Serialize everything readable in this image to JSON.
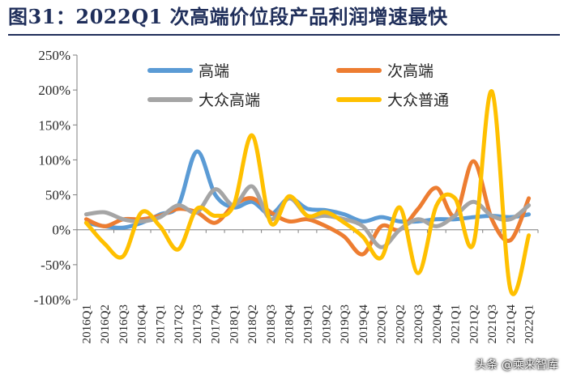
{
  "header": {
    "title": "图31：2022Q1 次高端价位段产品利润增速最快"
  },
  "watermark": {
    "text": "头条 @乘来智库"
  },
  "chart_data": {
    "type": "line",
    "title": "图31：2022Q1 次高端价位段产品利润增速最快",
    "xlabel": "",
    "ylabel": "",
    "ylim": [
      -100,
      250
    ],
    "y_ticks": [
      250,
      200,
      150,
      100,
      50,
      0,
      -50,
      -100
    ],
    "y_tick_labels": [
      "250%",
      "200%",
      "150%",
      "100%",
      "50%",
      "0%",
      "-50%",
      "-100%"
    ],
    "legend_position": "top",
    "categories": [
      "2016Q1",
      "2016Q2",
      "2016Q3",
      "2016Q4",
      "2017Q1",
      "2017Q2",
      "2017Q3",
      "2017Q4",
      "2018Q1",
      "2018Q2",
      "2018Q3",
      "2018Q4",
      "2019Q1",
      "2019Q2",
      "2019Q3",
      "2019Q4",
      "2020Q1",
      "2020Q2",
      "2020Q3",
      "2020Q4",
      "2021Q1",
      "2021Q2",
      "2021Q3",
      "2021Q4",
      "2022Q1"
    ],
    "series": [
      {
        "name": "高端",
        "color": "#5b9bd5",
        "values": [
          10,
          5,
          3,
          10,
          22,
          35,
          112,
          50,
          32,
          40,
          22,
          45,
          30,
          28,
          22,
          12,
          18,
          12,
          12,
          15,
          15,
          18,
          20,
          18,
          22
        ]
      },
      {
        "name": "次高端",
        "color": "#ed7d31",
        "values": [
          15,
          5,
          15,
          15,
          20,
          30,
          25,
          10,
          35,
          45,
          25,
          12,
          15,
          5,
          -10,
          -35,
          5,
          0,
          30,
          60,
          20,
          98,
          15,
          -15,
          45
        ]
      },
      {
        "name": "大众高端",
        "color": "#a5a5a5",
        "values": [
          22,
          25,
          15,
          12,
          18,
          35,
          25,
          58,
          35,
          62,
          15,
          45,
          20,
          20,
          15,
          5,
          -25,
          0,
          15,
          5,
          20,
          40,
          20,
          15,
          35
        ]
      },
      {
        "name": "大众普通",
        "color": "#ffc000",
        "values": [
          10,
          -20,
          -38,
          25,
          5,
          -28,
          30,
          20,
          35,
          135,
          10,
          48,
          20,
          25,
          10,
          -10,
          -40,
          32,
          -62,
          35,
          45,
          -20,
          198,
          -85,
          -8
        ]
      }
    ]
  }
}
